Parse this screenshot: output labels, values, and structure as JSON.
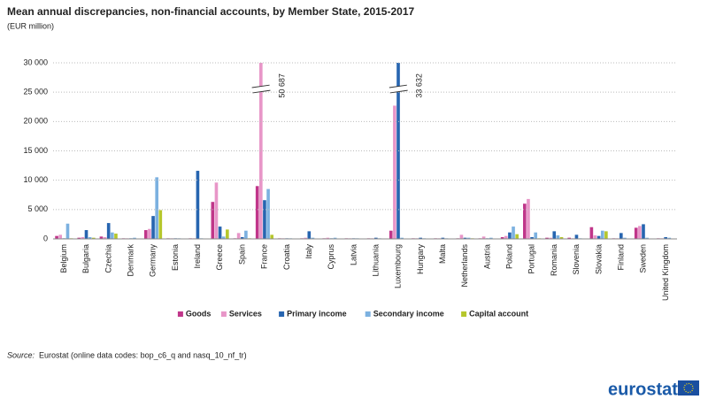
{
  "chart_data": {
    "type": "bar",
    "title": "Mean annual discrepancies, non-financial accounts, by Member State, 2015-2017",
    "subtitle": "(EUR million)",
    "categories": [
      "Belgium",
      "Bulgaria",
      "Czechia",
      "Denmark",
      "Germany",
      "Estonia",
      "Ireland",
      "Greece",
      "Spain",
      "France",
      "Croatia",
      "Italy",
      "Cyprus",
      "Latvia",
      "Lithuania",
      "Luxembourg",
      "Hungary",
      "Malta",
      "Netherlands",
      "Austria",
      "Poland",
      "Portugal",
      "Romania",
      "Slovenia",
      "Slovakia",
      "Finland",
      "Sweden",
      "United Kingdom"
    ],
    "series": [
      {
        "name": "Goods",
        "color": "#c0368a",
        "values": [
          500,
          200,
          400,
          100,
          1500,
          100,
          100,
          6300,
          100,
          9000,
          100,
          100,
          100,
          100,
          100,
          1400,
          100,
          100,
          100,
          100,
          300,
          6000,
          200,
          200,
          2000,
          100,
          1900,
          100
        ]
      },
      {
        "name": "Services",
        "color": "#e896c8",
        "values": [
          700,
          300,
          300,
          100,
          1700,
          100,
          100,
          9600,
          1000,
          50687,
          100,
          200,
          200,
          100,
          100,
          22700,
          100,
          100,
          700,
          400,
          500,
          6800,
          200,
          100,
          600,
          100,
          2200,
          100
        ],
        "value_labels": [
          null,
          null,
          null,
          null,
          null,
          null,
          null,
          null,
          null,
          "50 687",
          null,
          null,
          null,
          null,
          null,
          null,
          null,
          null,
          null,
          null,
          null,
          null,
          null,
          null,
          null,
          null,
          null,
          null
        ]
      },
      {
        "name": "Primary income",
        "color": "#2765b0",
        "values": [
          100,
          1500,
          2700,
          100,
          3900,
          100,
          11600,
          2100,
          300,
          6600,
          100,
          1300,
          100,
          100,
          200,
          33632,
          200,
          200,
          200,
          100,
          1100,
          300,
          1300,
          700,
          500,
          1000,
          2500,
          300
        ],
        "value_labels": [
          null,
          null,
          null,
          null,
          null,
          null,
          null,
          null,
          null,
          null,
          null,
          null,
          null,
          null,
          null,
          "33 632",
          null,
          null,
          null,
          null,
          null,
          null,
          null,
          null,
          null,
          null,
          null,
          null
        ]
      },
      {
        "name": "Secondary income",
        "color": "#7cb1e0",
        "values": [
          2600,
          300,
          1100,
          200,
          10500,
          100,
          100,
          400,
          1400,
          8500,
          100,
          200,
          200,
          100,
          100,
          200,
          100,
          100,
          200,
          200,
          2100,
          1100,
          600,
          100,
          1400,
          200,
          200,
          200
        ]
      },
      {
        "name": "Capital account",
        "color": "#b6c72c",
        "values": [
          100,
          200,
          900,
          0,
          4900,
          0,
          0,
          1600,
          100,
          700,
          0,
          0,
          0,
          0,
          0,
          0,
          0,
          0,
          100,
          0,
          800,
          100,
          300,
          0,
          1300,
          0,
          0,
          0
        ]
      }
    ],
    "ylim": [
      0,
      30000
    ],
    "yticks": [
      0,
      {
        "value": 5000,
        "label": "5 000"
      },
      {
        "value": 10000,
        "label": "10 000"
      },
      {
        "value": 15000,
        "label": "15 000"
      },
      {
        "value": 20000,
        "label": "20 000"
      },
      {
        "value": 25000,
        "label": "25 000"
      },
      {
        "value": 30000,
        "label": "30 000"
      }
    ],
    "grid": true,
    "legend": "bottom",
    "source_label": "Source:",
    "source": "Eurostat (online data codes: bop_c6_q and nasq_10_nf_tr)",
    "logo_text": "eurostat"
  }
}
